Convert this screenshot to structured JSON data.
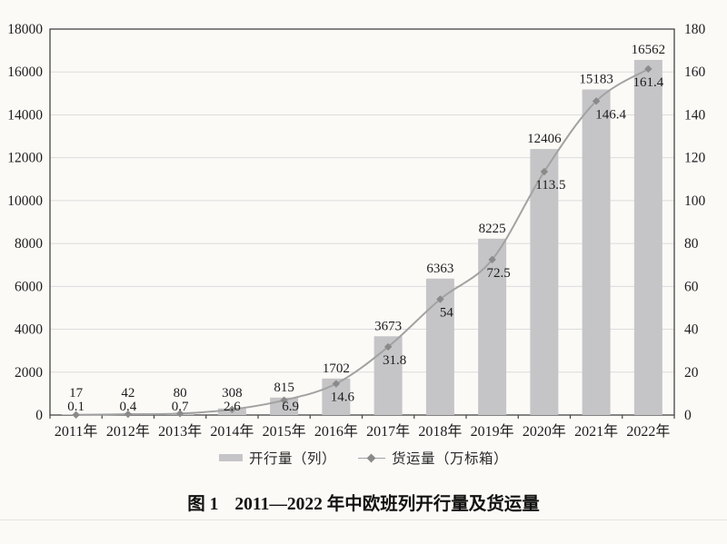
{
  "page": {
    "background": "#fbfaf7"
  },
  "chart_data": {
    "type": "bar",
    "subtype": "bar+line combo, dual y-axes",
    "title": "图 1　2011—2022 年中欧班列开行量及货运量",
    "categories": [
      "2011年",
      "2012年",
      "2013年",
      "2014年",
      "2015年",
      "2016年",
      "2017年",
      "2018年",
      "2019年",
      "2020年",
      "2021年",
      "2022年"
    ],
    "series": [
      {
        "name": "开行量（列）",
        "type": "bar",
        "axis": "left",
        "color": "#c5c5c7",
        "values": [
          17,
          42,
          80,
          308,
          815,
          1702,
          3673,
          6363,
          8225,
          12406,
          15183,
          16562
        ]
      },
      {
        "name": "货运量（万标箱）",
        "type": "line",
        "axis": "right",
        "color": "#a2a2a2",
        "marker": "diamond",
        "marker_color": "#8a8a8a",
        "values": [
          0.1,
          0.4,
          0.7,
          2.6,
          6.9,
          14.6,
          31.8,
          54,
          72.5,
          113.5,
          146.4,
          161.4
        ]
      }
    ],
    "left_axis": {
      "min": 0,
      "max": 18000,
      "step": 2000
    },
    "right_axis": {
      "min": 0,
      "max": 180,
      "step": 20
    },
    "grid": true,
    "legend_position": "bottom",
    "data_labels": true
  },
  "caption": {
    "figure_label": "图 1",
    "title": "2011—2022 年中欧班列开行量及货运量"
  },
  "colors": {
    "background": "#fbfaf7",
    "bar": "#c5c5c7",
    "line": "#a2a2a2",
    "marker": "#8a8a8a",
    "gridline": "#dcdcdc",
    "frame": "#454545",
    "text": "#1c1c1c"
  }
}
